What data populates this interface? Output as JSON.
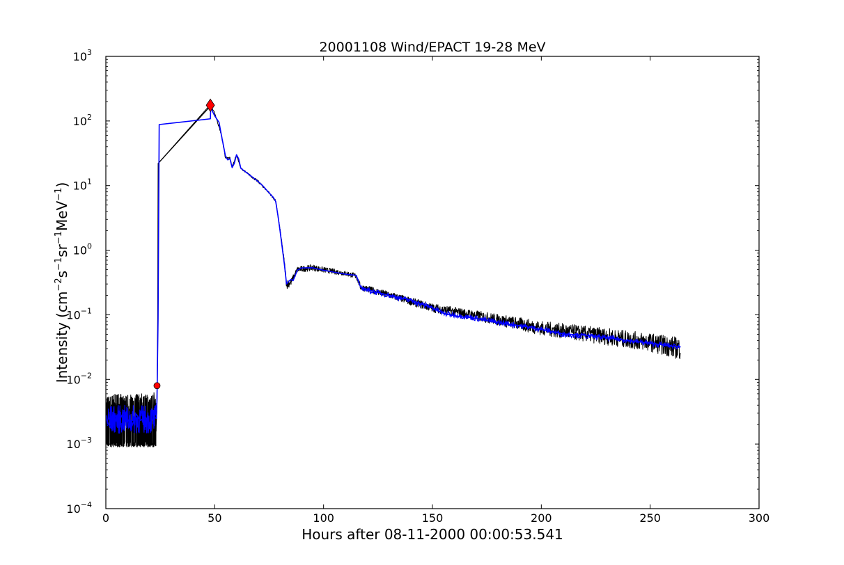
{
  "chart_data": {
    "type": "line",
    "title": "20001108 Wind/EPACT 19-28 MeV",
    "xlabel": "Hours after 08-11-2000 00:00:53.541",
    "ylabel": {
      "prefix": "Intensity (cm",
      "sup1": "−2",
      "mid1": "s",
      "sup2": "−1",
      "mid2": "sr",
      "sup3": "−1",
      "mid3": "MeV",
      "sup4": "−1",
      "suffix": ")"
    },
    "x_scale": "linear",
    "y_scale": "log",
    "xlim": [
      0,
      300
    ],
    "ylim": [
      0.0001,
      1000
    ],
    "grid": false,
    "x_ticks": [
      {
        "value": 0,
        "label": "0"
      },
      {
        "value": 50,
        "label": "50"
      },
      {
        "value": 100,
        "label": "100"
      },
      {
        "value": 150,
        "label": "150"
      },
      {
        "value": 200,
        "label": "200"
      },
      {
        "value": 250,
        "label": "250"
      },
      {
        "value": 300,
        "label": "300"
      }
    ],
    "y_ticks": [
      {
        "value": 0.0001,
        "base": "10",
        "exp": "-4"
      },
      {
        "value": 0.001,
        "base": "10",
        "exp": "-3"
      },
      {
        "value": 0.01,
        "base": "10",
        "exp": "-2"
      },
      {
        "value": 0.1,
        "base": "10",
        "exp": "-1"
      },
      {
        "value": 1,
        "base": "10",
        "exp": "0"
      },
      {
        "value": 10,
        "base": "10",
        "exp": "1"
      },
      {
        "value": 100,
        "base": "10",
        "exp": "2"
      },
      {
        "value": 1000,
        "base": "10",
        "exp": "3"
      }
    ],
    "colors": {
      "raw": "#000000",
      "smoothed": "#0000ff",
      "markers": "#ff0000"
    },
    "series": [
      {
        "style": "raw (black, noisy)",
        "envelope": [
          [
            0,
            0.0009,
            0.0055
          ],
          [
            5,
            0.0009,
            0.006
          ],
          [
            10,
            0.0009,
            0.0058
          ],
          [
            15,
            0.0009,
            0.006
          ],
          [
            20,
            0.0009,
            0.006
          ],
          [
            23,
            0.0009,
            0.0065
          ],
          [
            23.5,
            0.008,
            0.009
          ],
          [
            24,
            0.02,
            0.1
          ],
          [
            48,
            170,
            180
          ],
          [
            50,
            130,
            135
          ],
          [
            53,
            60,
            65
          ],
          [
            55,
            25,
            28
          ],
          [
            57,
            25,
            28
          ],
          [
            58,
            19,
            20
          ],
          [
            60,
            29,
            31
          ],
          [
            62,
            18,
            19
          ],
          [
            65,
            15,
            16
          ],
          [
            70,
            11,
            12
          ],
          [
            75,
            7.5,
            8
          ],
          [
            78,
            5.5,
            6
          ],
          [
            80,
            2.0,
            2.2
          ],
          [
            82,
            0.6,
            0.7
          ],
          [
            83,
            0.25,
            0.35
          ],
          [
            85,
            0.28,
            0.36
          ],
          [
            88,
            0.45,
            0.56
          ],
          [
            95,
            0.48,
            0.6
          ],
          [
            100,
            0.45,
            0.55
          ],
          [
            110,
            0.4,
            0.48
          ],
          [
            115,
            0.36,
            0.44
          ],
          [
            117,
            0.24,
            0.3
          ],
          [
            130,
            0.18,
            0.23
          ],
          [
            150,
            0.11,
            0.15
          ],
          [
            175,
            0.075,
            0.11
          ],
          [
            200,
            0.048,
            0.08
          ],
          [
            225,
            0.036,
            0.065
          ],
          [
            250,
            0.027,
            0.052
          ],
          [
            264,
            0.02,
            0.045
          ]
        ]
      },
      {
        "style": "smoothed (blue)",
        "points": [
          [
            0,
            0.0025
          ],
          [
            2,
            0.0018
          ],
          [
            4,
            0.0028
          ],
          [
            6,
            0.0022
          ],
          [
            8,
            0.0031
          ],
          [
            10,
            0.0024
          ],
          [
            12,
            0.0019
          ],
          [
            14,
            0.0029
          ],
          [
            16,
            0.0023
          ],
          [
            18,
            0.0027
          ],
          [
            20,
            0.0021
          ],
          [
            22,
            0.0026
          ],
          [
            23.2,
            0.0025
          ],
          [
            23.5,
            0.005
          ],
          [
            24,
            0.09
          ],
          [
            24.5,
            88
          ],
          [
            48,
            108
          ],
          [
            48.2,
            170
          ],
          [
            49,
            140
          ],
          [
            50,
            120
          ],
          [
            52,
            95
          ],
          [
            53,
            62
          ],
          [
            55,
            28
          ],
          [
            56,
            25
          ],
          [
            57,
            26
          ],
          [
            58,
            19
          ],
          [
            59,
            22
          ],
          [
            60,
            30
          ],
          [
            61,
            26
          ],
          [
            62,
            18.5
          ],
          [
            65,
            15.5
          ],
          [
            68,
            13
          ],
          [
            70,
            11.5
          ],
          [
            72,
            10
          ],
          [
            75,
            7.7
          ],
          [
            77,
            6.5
          ],
          [
            78,
            5.7
          ],
          [
            79,
            3.5
          ],
          [
            80,
            2.0
          ],
          [
            81,
            1.1
          ],
          [
            82,
            0.6
          ],
          [
            83,
            0.3
          ],
          [
            84,
            0.33
          ],
          [
            85,
            0.36
          ],
          [
            86,
            0.34
          ],
          [
            88,
            0.48
          ],
          [
            90,
            0.52
          ],
          [
            95,
            0.54
          ],
          [
            100,
            0.5
          ],
          [
            105,
            0.46
          ],
          [
            110,
            0.43
          ],
          [
            115,
            0.4
          ],
          [
            117,
            0.27
          ],
          [
            120,
            0.24
          ],
          [
            130,
            0.2
          ],
          [
            140,
            0.165
          ],
          [
            150,
            0.13
          ],
          [
            155,
            0.105
          ],
          [
            160,
            0.1
          ],
          [
            170,
            0.088
          ],
          [
            180,
            0.077
          ],
          [
            190,
            0.068
          ],
          [
            200,
            0.06
          ],
          [
            205,
            0.055
          ],
          [
            210,
            0.05
          ],
          [
            220,
            0.047
          ],
          [
            230,
            0.044
          ],
          [
            240,
            0.04
          ],
          [
            250,
            0.036
          ],
          [
            260,
            0.033
          ],
          [
            264,
            0.032
          ]
        ]
      },
      {
        "style": "connector (black)",
        "points": [
          [
            24,
            22
          ],
          [
            48,
            170
          ]
        ]
      }
    ],
    "markers": [
      {
        "shape": "circle",
        "x": 23.5,
        "y": 0.008
      },
      {
        "shape": "diamond",
        "x": 48,
        "y": 175
      }
    ]
  }
}
